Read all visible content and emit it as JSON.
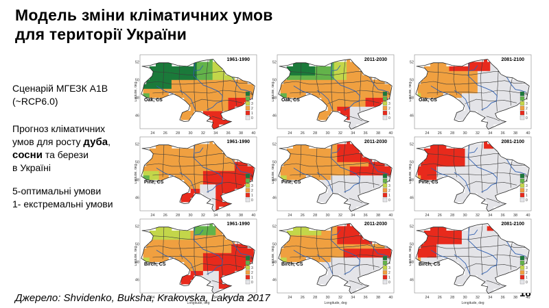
{
  "title": {
    "line1": "Модель зміни кліматичних умов",
    "line2": "для території України"
  },
  "scenario": {
    "line1": "Сценарій МГЕЗК А1В",
    "line2": "(~RCP6.0)"
  },
  "forecast": {
    "line1": "Прогноз кліматичних",
    "line2_pre": "умов для росту ",
    "line2_bold": "дуба",
    "line2_post": ",",
    "line3_bold": "сосни",
    "line3_post": " та берези",
    "line4": "в Україні"
  },
  "legend_note": {
    "line1": "5-оптимальні умови",
    "line2": "1- екстремальні умови"
  },
  "source": "Джерело:  Shvidenko, Buksha, Krakovska, Lakyda 2017",
  "page_number": "18",
  "map_common": {
    "x_label": "Longitude, deg",
    "y_label": "Latitude, deg",
    "x_ticks": [
      "24",
      "26",
      "28",
      "30",
      "32",
      "34",
      "36",
      "38",
      "40"
    ],
    "y_ticks": [
      "52",
      "50",
      "48",
      "46"
    ],
    "legend_levels": [
      "5",
      "4",
      "3",
      "2",
      "1",
      "0"
    ],
    "class_colors": {
      "5": "#1b7a3a",
      "4": "#63b34a",
      "3": "#c3d64a",
      "2": "#f0a040",
      "1": "#e82a1c",
      "0": "#e4e4e8"
    },
    "sea_color": "#ffffff",
    "border_color": "#3a3a3a",
    "river_color": "#2f5fb0"
  },
  "panels": [
    {
      "row": 0,
      "col": 0,
      "species_label": "Oak, CS",
      "period": "1961-1990",
      "scheme": "oak_1961"
    },
    {
      "row": 0,
      "col": 1,
      "species_label": "Oak, CS",
      "period": "2011-2030",
      "scheme": "oak_2011"
    },
    {
      "row": 0,
      "col": 2,
      "species_label": "Oak, CS",
      "period": "2081-2100",
      "scheme": "oak_2081"
    },
    {
      "row": 1,
      "col": 0,
      "species_label": "Pine, CS",
      "period": "1961-1990",
      "scheme": "pine_1961"
    },
    {
      "row": 1,
      "col": 1,
      "species_label": "Pine, CS",
      "period": "2011-2030",
      "scheme": "pine_2011"
    },
    {
      "row": 1,
      "col": 2,
      "species_label": "Pine, CS",
      "period": "2081-2100",
      "scheme": "pine_2081"
    },
    {
      "row": 2,
      "col": 0,
      "species_label": "Birch, CS",
      "period": "1961-1990",
      "scheme": "birch_1961"
    },
    {
      "row": 2,
      "col": 1,
      "species_label": "Birch, CS",
      "period": "2011-2030",
      "scheme": "birch_2011"
    },
    {
      "row": 2,
      "col": 2,
      "species_label": "Birch, CS",
      "period": "2081-2100",
      "scheme": "birch_2081"
    }
  ]
}
